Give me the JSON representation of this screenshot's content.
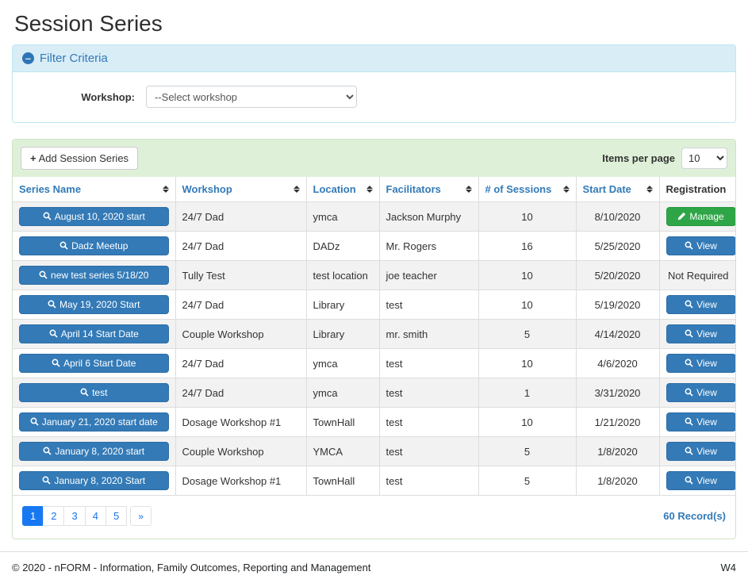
{
  "page": {
    "title": "Session Series"
  },
  "filter": {
    "title": "Filter Criteria",
    "collapse_icon": "minus-circle",
    "workshop_label": "Workshop:",
    "workshop_placeholder": "--Select workshop"
  },
  "toolbar": {
    "add_button": "Add Session Series",
    "add_icon": "plus",
    "items_per_page_label": "Items per page",
    "items_per_page_value": "10"
  },
  "table": {
    "columns": [
      {
        "label": "Series Name",
        "sortable": true
      },
      {
        "label": "Workshop",
        "sortable": true
      },
      {
        "label": "Location",
        "sortable": true
      },
      {
        "label": "Facilitators",
        "sortable": true
      },
      {
        "label": "# of Sessions",
        "sortable": true
      },
      {
        "label": "Start Date",
        "sortable": true
      },
      {
        "label": "Registration",
        "sortable": false
      }
    ],
    "rows": [
      {
        "series": "August 10, 2020 start",
        "workshop": "24/7 Dad",
        "location": "ymca",
        "facilitators": "Jackson Murphy",
        "sessions": "10",
        "start_date": "8/10/2020",
        "registration": {
          "type": "manage",
          "label": "Manage",
          "icon": "pencil"
        }
      },
      {
        "series": "Dadz Meetup",
        "workshop": "24/7 Dad",
        "location": "DADz",
        "facilitators": "Mr. Rogers",
        "sessions": "16",
        "start_date": "5/25/2020",
        "registration": {
          "type": "view",
          "label": "View",
          "icon": "magnifier"
        }
      },
      {
        "series": "new test series 5/18/20",
        "workshop": "Tully Test",
        "location": "test location",
        "facilitators": "joe teacher",
        "sessions": "10",
        "start_date": "5/20/2020",
        "registration": {
          "type": "text",
          "label": "Not Required"
        }
      },
      {
        "series": "May 19, 2020 Start",
        "workshop": "24/7 Dad",
        "location": "Library",
        "facilitators": "test",
        "sessions": "10",
        "start_date": "5/19/2020",
        "registration": {
          "type": "view",
          "label": "View",
          "icon": "magnifier"
        }
      },
      {
        "series": "April 14 Start Date",
        "workshop": "Couple Workshop",
        "location": "Library",
        "facilitators": "mr. smith",
        "sessions": "5",
        "start_date": "4/14/2020",
        "registration": {
          "type": "view",
          "label": "View",
          "icon": "magnifier"
        }
      },
      {
        "series": "April 6 Start Date",
        "workshop": "24/7 Dad",
        "location": "ymca",
        "facilitators": "test",
        "sessions": "10",
        "start_date": "4/6/2020",
        "registration": {
          "type": "view",
          "label": "View",
          "icon": "magnifier"
        }
      },
      {
        "series": "test",
        "workshop": "24/7 Dad",
        "location": "ymca",
        "facilitators": "test",
        "sessions": "1",
        "start_date": "3/31/2020",
        "registration": {
          "type": "view",
          "label": "View",
          "icon": "magnifier"
        }
      },
      {
        "series": "January 21, 2020 start date",
        "workshop": "Dosage Workshop #1",
        "location": "TownHall",
        "facilitators": "test",
        "sessions": "10",
        "start_date": "1/21/2020",
        "registration": {
          "type": "view",
          "label": "View",
          "icon": "magnifier"
        }
      },
      {
        "series": "January 8, 2020 start",
        "workshop": "Couple Workshop",
        "location": "YMCA",
        "facilitators": "test",
        "sessions": "5",
        "start_date": "1/8/2020",
        "registration": {
          "type": "view",
          "label": "View",
          "icon": "magnifier"
        }
      },
      {
        "series": "January 8, 2020 Start",
        "workshop": "Dosage Workshop #1",
        "location": "TownHall",
        "facilitators": "test",
        "sessions": "5",
        "start_date": "1/8/2020",
        "registration": {
          "type": "view",
          "label": "View",
          "icon": "magnifier"
        }
      }
    ]
  },
  "pagination": {
    "pages": [
      "1",
      "2",
      "3",
      "4",
      "5"
    ],
    "active_page": "1",
    "next_label": "»",
    "records_text": "60 Record(s)"
  },
  "footer": {
    "copyright": "© 2020 - nFORM - Information, Family Outcomes, Reporting and Management",
    "version": "W4"
  },
  "colors": {
    "primary_blue": "#337ab7",
    "success_green": "#2ea546",
    "pagination_active_blue": "#1778f2",
    "filter_header_bg": "#d9edf7",
    "filter_border": "#bce8f1",
    "toolbar_bg": "#dff0d8",
    "stripe_gray": "#f2f2f2"
  }
}
